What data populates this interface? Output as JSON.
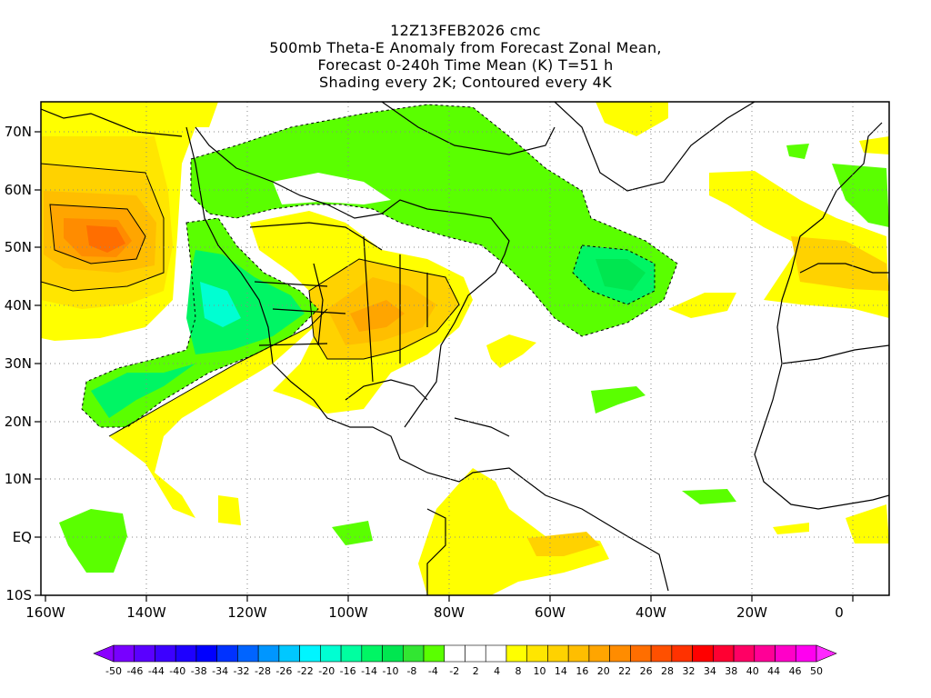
{
  "title": {
    "line1": "12Z13FEB2026 cmc",
    "line2": "500mb Theta-E Anomaly from Forecast Zonal Mean,",
    "line3": "Forecast 0-240h Time Mean (K) T=51 h",
    "line4": "Shading every 2K; Contoured every 4K"
  },
  "axes": {
    "x_labels": [
      "160W",
      "140W",
      "120W",
      "100W",
      "80W",
      "60W",
      "40W",
      "20W",
      "0"
    ],
    "y_labels": [
      "70N",
      "60N",
      "50N",
      "40N",
      "30N",
      "20N",
      "10N",
      "EQ",
      "10S"
    ]
  },
  "colorbar": {
    "labels": [
      "-50",
      "-46",
      "-44",
      "-40",
      "-38",
      "-34",
      "-32",
      "-28",
      "-26",
      "-22",
      "-20",
      "-16",
      "-14",
      "-10",
      "-8",
      "-4",
      "-2",
      "2",
      "4",
      "8",
      "10",
      "14",
      "16",
      "20",
      "22",
      "26",
      "28",
      "32",
      "34",
      "38",
      "40",
      "44",
      "46",
      "50"
    ],
    "colors": [
      "#8a00ff",
      "#7800ff",
      "#5a00ff",
      "#3c00ff",
      "#1e00ff",
      "#0000ff",
      "#0032ff",
      "#0064ff",
      "#0096ff",
      "#00c8ff",
      "#00f5ff",
      "#00ffd2",
      "#00ffa0",
      "#00f564",
      "#00e650",
      "#32e632",
      "#5aff00",
      "#ffffff",
      "#ffffff",
      "#ffffff",
      "#ffff00",
      "#ffe600",
      "#ffd200",
      "#ffbe00",
      "#ffa500",
      "#ff8c00",
      "#ff6e00",
      "#ff5000",
      "#ff3200",
      "#ff0000",
      "#ff0032",
      "#ff0064",
      "#ff0096",
      "#ff00c8",
      "#ff00f0",
      "#ff28ff"
    ]
  }
}
